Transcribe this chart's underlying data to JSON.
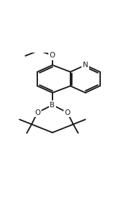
{
  "background_color": "#ffffff",
  "line_color": "#1a1a1a",
  "line_width": 1.4,
  "font_size": 7.5,
  "figsize": [
    1.81,
    2.89
  ],
  "dpi": 100,
  "atom_labels": {
    "N": "N",
    "O8": "O",
    "O1b": "O",
    "O2b": "O",
    "B": "B"
  }
}
